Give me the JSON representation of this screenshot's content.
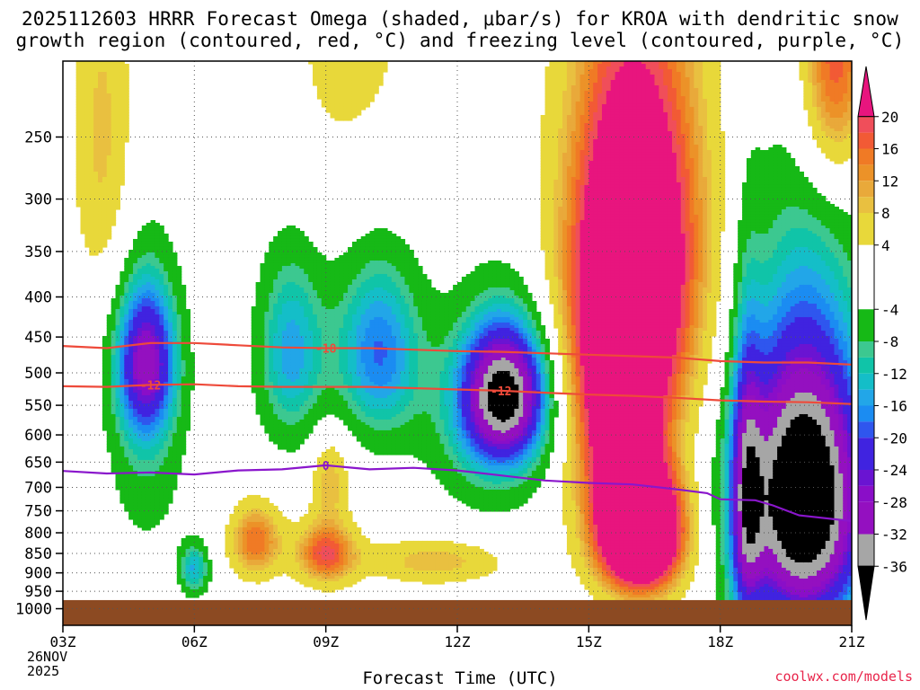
{
  "title_line1": "2025112603 HRRR Forecast Omega (shaded, μbar/s) for KROA with dendritic snow",
  "title_line2": "growth region (contoured, red, °C) and freezing level (contoured, purple, °C)",
  "x_axis_title": "Forecast Time (UTC)",
  "x_date_line1": "26NOV",
  "x_date_line2": "2025",
  "credit": "coolwx.com/models",
  "chart_data": {
    "type": "heatmap",
    "title": "2025112603 HRRR Forecast Omega (shaded, μbar/s) for KROA with dendritic snow growth region (contoured, red, °C) and freezing level (contoured, purple, °C)",
    "xlabel": "Forecast Time (UTC)",
    "ylabel": "",
    "x_ticks": [
      "03Z",
      "06Z",
      "09Z",
      "12Z",
      "15Z",
      "18Z",
      "21Z"
    ],
    "x_hours": [
      3,
      6,
      9,
      12,
      15,
      18,
      21
    ],
    "xlim": [
      3,
      21
    ],
    "y_ticks": [
      250,
      300,
      350,
      400,
      450,
      500,
      550,
      600,
      650,
      700,
      750,
      800,
      850,
      900,
      950,
      1000
    ],
    "ylim": [
      200,
      1050
    ],
    "colorbar": {
      "labels": [
        20,
        16,
        12,
        8,
        4,
        -4,
        -8,
        -12,
        -16,
        -20,
        -24,
        -28,
        -32,
        -36
      ],
      "bins": [
        {
          "from": 20,
          "to": 24,
          "color": "#e8157e"
        },
        {
          "from": 18,
          "to": 20,
          "color": "#f04e5a"
        },
        {
          "from": 16,
          "to": 18,
          "color": "#f25a35"
        },
        {
          "from": 14,
          "to": 16,
          "color": "#f07a25"
        },
        {
          "from": 12,
          "to": 14,
          "color": "#ec9228"
        },
        {
          "from": 10,
          "to": 12,
          "color": "#e9a93a"
        },
        {
          "from": 8,
          "to": 10,
          "color": "#e9c040"
        },
        {
          "from": 4,
          "to": 8,
          "color": "#e8d83a"
        },
        {
          "from": -4,
          "to": 4,
          "color": "#ffffff"
        },
        {
          "from": -8,
          "to": -4,
          "color": "#16b916"
        },
        {
          "from": -10,
          "to": -8,
          "color": "#3cc890"
        },
        {
          "from": -12,
          "to": -10,
          "color": "#10c4a8"
        },
        {
          "from": -14,
          "to": -12,
          "color": "#14bec8"
        },
        {
          "from": -16,
          "to": -14,
          "color": "#22a6e8"
        },
        {
          "from": -18,
          "to": -16,
          "color": "#1b8cf2"
        },
        {
          "from": -20,
          "to": -18,
          "color": "#2f56ee"
        },
        {
          "from": -24,
          "to": -20,
          "color": "#4023e0"
        },
        {
          "from": -26,
          "to": -24,
          "color": "#6a14d2"
        },
        {
          "from": -28,
          "to": -26,
          "color": "#8a0ec8"
        },
        {
          "from": -32,
          "to": -28,
          "color": "#9410c0"
        },
        {
          "from": -36,
          "to": -32,
          "color": "#a6a6a6"
        },
        {
          "from": -40,
          "to": -36,
          "color": "#000000"
        }
      ]
    },
    "surface_color": "#8c4a22",
    "contours": {
      "dgz_minus18": {
        "label": "-18",
        "color": "#ee4a3a",
        "points": [
          [
            3,
            462
          ],
          [
            4,
            465
          ],
          [
            5,
            458
          ],
          [
            6,
            458
          ],
          [
            7,
            461
          ],
          [
            8,
            464
          ],
          [
            9,
            465
          ],
          [
            10,
            465
          ],
          [
            11,
            467
          ],
          [
            12,
            469
          ],
          [
            13,
            470
          ],
          [
            14,
            472
          ],
          [
            15,
            474
          ],
          [
            16,
            476
          ],
          [
            17,
            478
          ],
          [
            18,
            483
          ],
          [
            19,
            485
          ],
          [
            20,
            485
          ],
          [
            21,
            488
          ]
        ]
      },
      "dgz_minus12": {
        "label": "-12",
        "color": "#ee4a3a",
        "points": [
          [
            3,
            520
          ],
          [
            4,
            521
          ],
          [
            5,
            518
          ],
          [
            6,
            517
          ],
          [
            7,
            520
          ],
          [
            8,
            521
          ],
          [
            9,
            521
          ],
          [
            10,
            521
          ],
          [
            11,
            523
          ],
          [
            12,
            525
          ],
          [
            13,
            527
          ],
          [
            14,
            530
          ],
          [
            15,
            533
          ],
          [
            16,
            535
          ],
          [
            17,
            538
          ],
          [
            18,
            542
          ],
          [
            19,
            544
          ],
          [
            20,
            545
          ],
          [
            21,
            548
          ]
        ]
      },
      "freezing_level": {
        "label": "0",
        "color": "#8a16cc",
        "points": [
          [
            3,
            667
          ],
          [
            4,
            672
          ],
          [
            5,
            670
          ],
          [
            6,
            674
          ],
          [
            7,
            666
          ],
          [
            8,
            664
          ],
          [
            9,
            656
          ],
          [
            10,
            664
          ],
          [
            11,
            661
          ],
          [
            12,
            666
          ],
          [
            13,
            676
          ],
          [
            14,
            686
          ],
          [
            15,
            691
          ],
          [
            16,
            694
          ],
          [
            17,
            704
          ],
          [
            17.7,
            712
          ],
          [
            18,
            725
          ],
          [
            18.8,
            727
          ],
          [
            19.2,
            738
          ],
          [
            19.8,
            760
          ],
          [
            21,
            773
          ]
        ]
      }
    }
  }
}
